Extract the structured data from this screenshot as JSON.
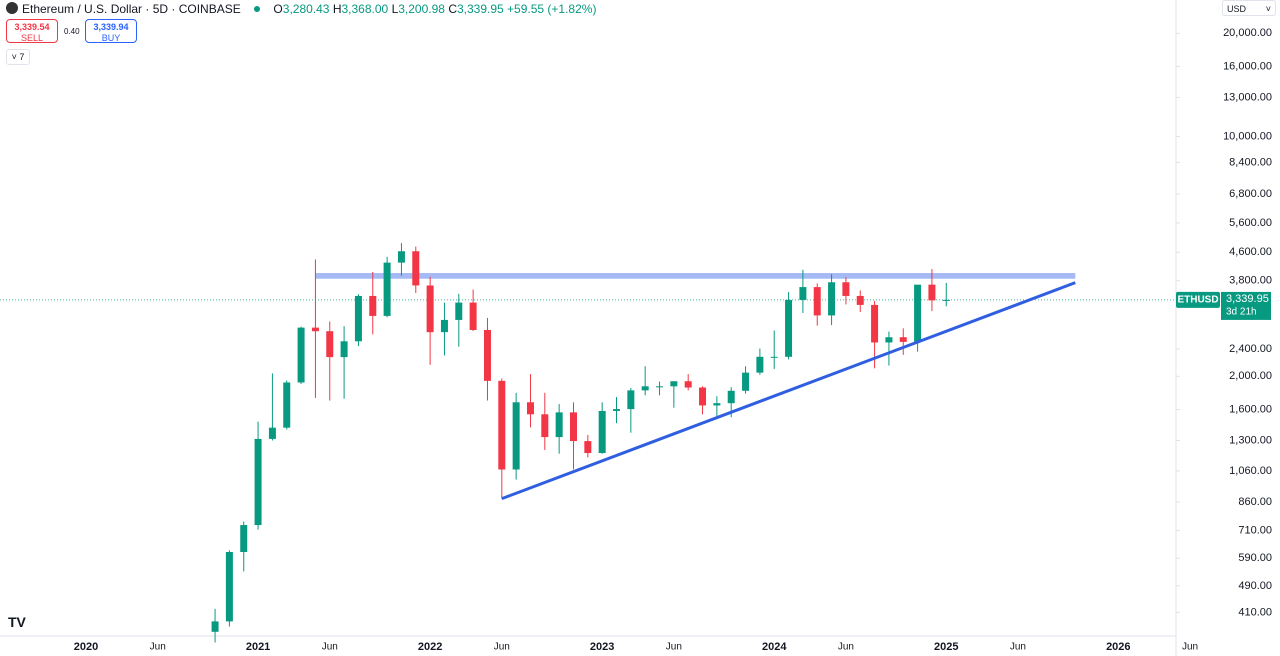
{
  "header": {
    "symbol": "Ethereum / U.S. Dollar · 5D · COINBASE",
    "open_label": "O",
    "open": "3,280.43",
    "high_label": "H",
    "high": "3,368.00",
    "low_label": "L",
    "low": "3,200.98",
    "close_label": "C",
    "close": "3,339.95",
    "change": "+59.55 (+1.82%)",
    "sell_price": "3,339.54",
    "sell": "SELL",
    "spread": "0.40",
    "buy_price": "3,339.94",
    "buy": "BUY",
    "indicators_count": "7",
    "currency": "USD"
  },
  "chart_data": {
    "type": "candlestick",
    "log_scale": true,
    "up_color": "#089981",
    "down_color": "#f23645",
    "x": [
      "2020-10",
      "2020-11",
      "2020-12",
      "2021-01",
      "2021-02",
      "2021-03",
      "2021-04",
      "2021-05",
      "2021-06",
      "2021-07",
      "2021-08",
      "2021-09",
      "2021-10",
      "2021-11",
      "2021-12",
      "2022-01",
      "2022-02",
      "2022-03",
      "2022-04",
      "2022-05",
      "2022-06",
      "2022-07",
      "2022-08",
      "2022-09",
      "2022-10",
      "2022-11",
      "2022-12",
      "2023-01",
      "2023-02",
      "2023-03",
      "2023-04",
      "2023-05",
      "2023-06",
      "2023-07",
      "2023-08",
      "2023-09",
      "2023-10",
      "2023-11",
      "2023-12",
      "2024-01",
      "2024-02",
      "2024-03",
      "2024-04",
      "2024-05",
      "2024-06",
      "2024-07",
      "2024-08",
      "2024-09",
      "2024-10",
      "2024-11",
      "2024-12",
      "2025-01"
    ],
    "open": [
      360,
      386,
      615,
      737,
      1314,
      1417,
      1919,
      2773,
      2707,
      2275,
      2530,
      3430,
      3000,
      4290,
      4630,
      3680,
      2690,
      2920,
      3280,
      2730,
      1940,
      1070,
      1680,
      1550,
      1330,
      1570,
      1295,
      1195,
      1585,
      1605,
      1820,
      1870,
      1870,
      1935,
      1855,
      1645,
      1670,
      1815,
      2050,
      2280,
      2280,
      3340,
      3640,
      3010,
      3760,
      3430,
      3230,
      2510,
      2600,
      2520,
      3700,
      3330
    ],
    "high": [
      420,
      622,
      755,
      1475,
      2040,
      1945,
      2790,
      4380,
      2890,
      2800,
      3470,
      4030,
      4460,
      4890,
      4780,
      3900,
      3280,
      3480,
      3580,
      2960,
      1970,
      1790,
      2030,
      1790,
      1660,
      1680,
      1350,
      1680,
      1740,
      1850,
      2140,
      1930,
      1930,
      2030,
      1870,
      1750,
      1860,
      2140,
      2410,
      2720,
      3520,
      4090,
      3730,
      3970,
      3890,
      3560,
      3320,
      2700,
      2760,
      3690,
      4110,
      3745
    ],
    "low": [
      335,
      373,
      540,
      715,
      1300,
      1400,
      1900,
      1730,
      1700,
      1720,
      2450,
      2650,
      2970,
      3930,
      3500,
      2160,
      2300,
      2440,
      2710,
      1700,
      880,
      1000,
      1420,
      1220,
      1190,
      1070,
      1160,
      1190,
      1460,
      1370,
      1760,
      1760,
      1620,
      1820,
      1550,
      1530,
      1520,
      1780,
      2020,
      2100,
      2240,
      3060,
      2810,
      2820,
      3240,
      3080,
      2110,
      2150,
      2310,
      2360,
      3100,
      3200
    ],
    "close": [
      386,
      615,
      737,
      1314,
      1417,
      1919,
      2773,
      2707,
      2275,
      2530,
      3430,
      3000,
      4290,
      4630,
      3680,
      2690,
      2920,
      3280,
      2730,
      1940,
      1070,
      1680,
      1550,
      1330,
      1570,
      1295,
      1195,
      1585,
      1605,
      1820,
      1870,
      1870,
      1935,
      1855,
      1645,
      1670,
      1815,
      2050,
      2280,
      2280,
      3340,
      3640,
      3010,
      3760,
      3430,
      3230,
      2510,
      2600,
      2520,
      3700,
      3330,
      3340
    ],
    "xlim": [
      "2019-07",
      "2026-06"
    ],
    "xticks": [
      {
        "value": "2020-01",
        "label": "2020"
      },
      {
        "value": "2020-06",
        "label": "Jun"
      },
      {
        "value": "2021-01",
        "label": "2021"
      },
      {
        "value": "2021-06",
        "label": "Jun"
      },
      {
        "value": "2022-01",
        "label": "2022"
      },
      {
        "value": "2022-06",
        "label": "Jun"
      },
      {
        "value": "2023-01",
        "label": "2023"
      },
      {
        "value": "2023-06",
        "label": "Jun"
      },
      {
        "value": "2024-01",
        "label": "2024"
      },
      {
        "value": "2024-06",
        "label": "Jun"
      },
      {
        "value": "2025-01",
        "label": "2025"
      },
      {
        "value": "2025-06",
        "label": "Jun"
      },
      {
        "value": "2026-01",
        "label": "2026"
      },
      {
        "value": "2026-06",
        "label": "Jun"
      }
    ],
    "ylim": [
      350,
      25000
    ],
    "yticks": [
      {
        "value": 20000,
        "label": "20,000.00"
      },
      {
        "value": 16000,
        "label": "16,000.00"
      },
      {
        "value": 13000,
        "label": "13,000.00"
      },
      {
        "value": 10000,
        "label": "10,000.00"
      },
      {
        "value": 8400,
        "label": "8,400.00"
      },
      {
        "value": 6800,
        "label": "6,800.00"
      },
      {
        "value": 5600,
        "label": "5,600.00"
      },
      {
        "value": 4600,
        "label": "4,600.00"
      },
      {
        "value": 3800,
        "label": "3,800.00"
      },
      {
        "value": 2400,
        "label": "2,400.00"
      },
      {
        "value": 2000,
        "label": "2,000.00"
      },
      {
        "value": 1600,
        "label": "1,600.00"
      },
      {
        "value": 1300,
        "label": "1,300.00"
      },
      {
        "value": 1060,
        "label": "1,060.00"
      },
      {
        "value": 860,
        "label": "860.00"
      },
      {
        "value": 710,
        "label": "710.00"
      },
      {
        "value": 590,
        "label": "590.00"
      },
      {
        "value": 490,
        "label": "490.00"
      },
      {
        "value": 410,
        "label": "410.00"
      }
    ],
    "last_price": {
      "value": 3339.95,
      "label": "3,339.95"
    },
    "ticker": "ETHUSD",
    "countdown": "3d 21h",
    "resistance": {
      "x": [
        "2021-05",
        "2025-10"
      ],
      "low": 3850,
      "high": 4000,
      "color": "#a5b9f5"
    },
    "trendline": {
      "x": [
        "2022-06",
        "2025-10"
      ],
      "y": [
        880,
        3750
      ],
      "color": "#2f5fe0"
    }
  }
}
